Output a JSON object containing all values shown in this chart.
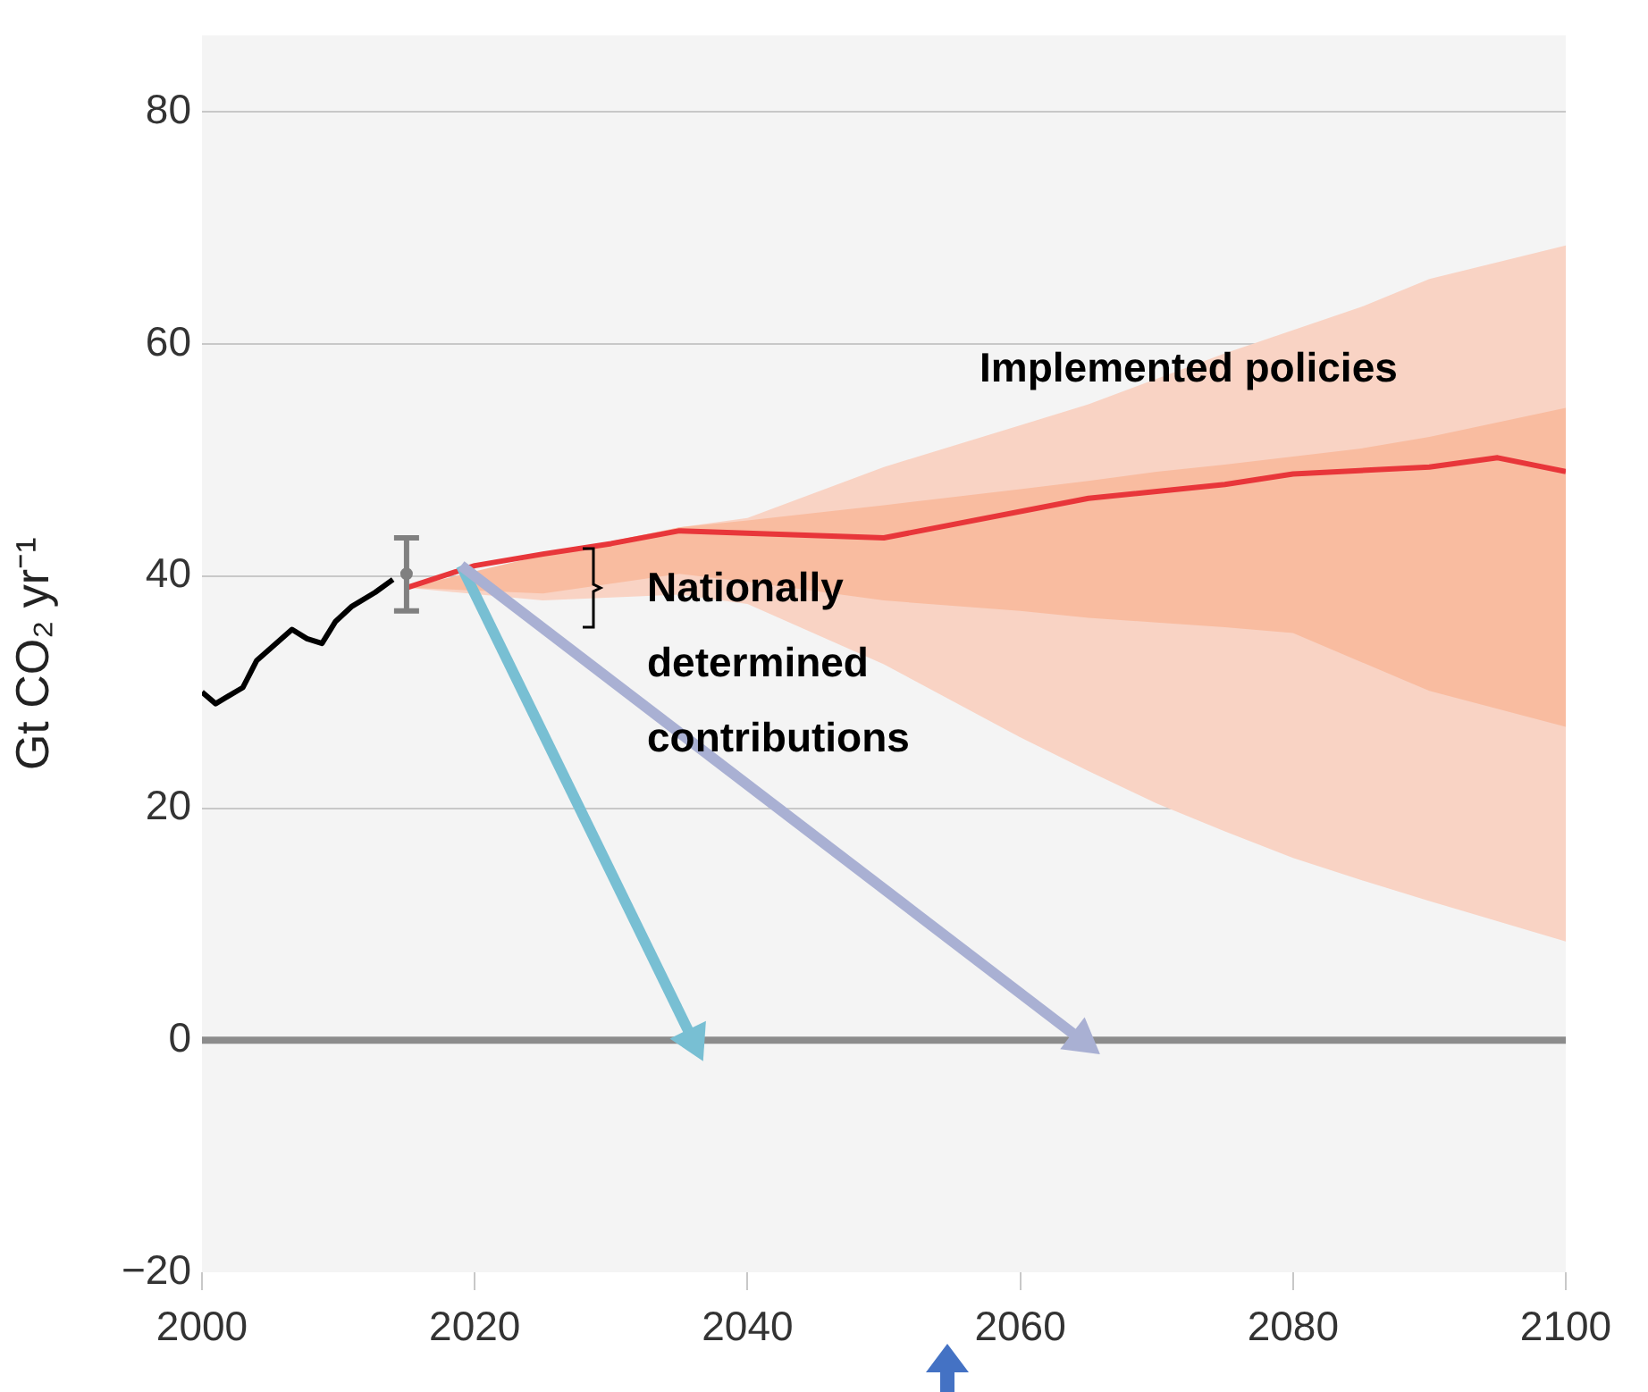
{
  "chart_data": {
    "type": "line",
    "ylabel": "Gt CO₂ yr⁻¹",
    "xlim": [
      2000,
      2100
    ],
    "xticks": [
      2000,
      2020,
      2040,
      2060,
      2080,
      2100
    ],
    "ylim": [
      -20,
      86.6
    ],
    "yticks": [
      {
        "value": -20,
        "label": "−20"
      },
      0,
      20,
      40,
      60,
      80
    ],
    "grid": "y",
    "legend": false,
    "marker": "none",
    "ref_lines": [
      {
        "axis": "y",
        "value": 0,
        "color": "#8c8c8c"
      }
    ],
    "annotations": [
      "Implemented policies",
      "Nationally determined contributions"
    ],
    "series": [
      {
        "type": "area",
        "color": "#f9d3c4",
        "x": [
          2015,
          2025,
          2035,
          2040,
          2050,
          2060,
          2065,
          2070,
          2075,
          2080,
          2085,
          2090,
          2100
        ],
        "values": [
          null,
          null,
          null,
          null,
          null,
          null,
          null,
          null,
          null,
          null,
          null,
          null,
          null
        ],
        "lower": [
          39,
          37.9,
          38.4,
          37.6,
          32.4,
          26.1,
          23.2,
          20.4,
          18,
          15.7,
          13.8,
          12,
          8.5
        ],
        "upper": [
          39,
          41.6,
          44.2,
          45,
          49.4,
          53,
          54.8,
          57,
          59.2,
          61.2,
          63.2,
          65.6,
          68.5
        ]
      },
      {
        "type": "area",
        "color": "#f9bca0",
        "x": [
          2015,
          2025,
          2035,
          2040,
          2050,
          2060,
          2065,
          2070,
          2075,
          2080,
          2085,
          2090,
          2100
        ],
        "values": [
          null,
          null,
          null,
          null,
          null,
          null,
          null,
          null,
          null,
          null,
          null,
          null,
          null
        ],
        "lower": [
          39,
          38.5,
          40.2,
          39.5,
          37.9,
          37,
          36.4,
          36,
          35.6,
          35.1,
          32.6,
          30.1,
          27
        ],
        "upper": [
          39,
          41.8,
          44.2,
          44.8,
          46.1,
          47.5,
          48.2,
          49,
          49.6,
          50.3,
          51,
          52,
          54.5
        ]
      },
      {
        "color": "#e8363a",
        "x": [
          2015,
          2020,
          2025,
          2030,
          2035,
          2050,
          2065,
          2075,
          2080,
          2090,
          2095,
          2100
        ],
        "values": [
          39,
          40.9,
          41.9,
          42.8,
          43.9,
          43.3,
          46.7,
          47.9,
          48.8,
          49.4,
          50.2,
          49.0
        ]
      },
      {
        "color": "#000000",
        "x": [
          2000,
          2001,
          2003,
          2004,
          2006.6,
          2007.7,
          2008.8,
          2009.8,
          2011,
          2012.7,
          2014
        ],
        "values": [
          30,
          29,
          30.4,
          32.7,
          35.4,
          34.6,
          34.2,
          36.1,
          37.4,
          38.6,
          39.7
        ]
      },
      {
        "type": "scatter",
        "color": "#808080",
        "marker": "circle",
        "x": [
          2015
        ],
        "values": [
          40.2
        ],
        "errors": [
          [
            37,
            43.3
          ]
        ]
      },
      {
        "type": "line",
        "color": "#78bfd3",
        "marker": "triangle",
        "x": [
          2019,
          2036
        ],
        "values": [
          40.9,
          0
        ]
      },
      {
        "type": "line",
        "color": "#a9b0d3",
        "marker": "triangle",
        "x": [
          2019,
          2064.5
        ],
        "values": [
          40.9,
          0
        ]
      }
    ]
  }
}
